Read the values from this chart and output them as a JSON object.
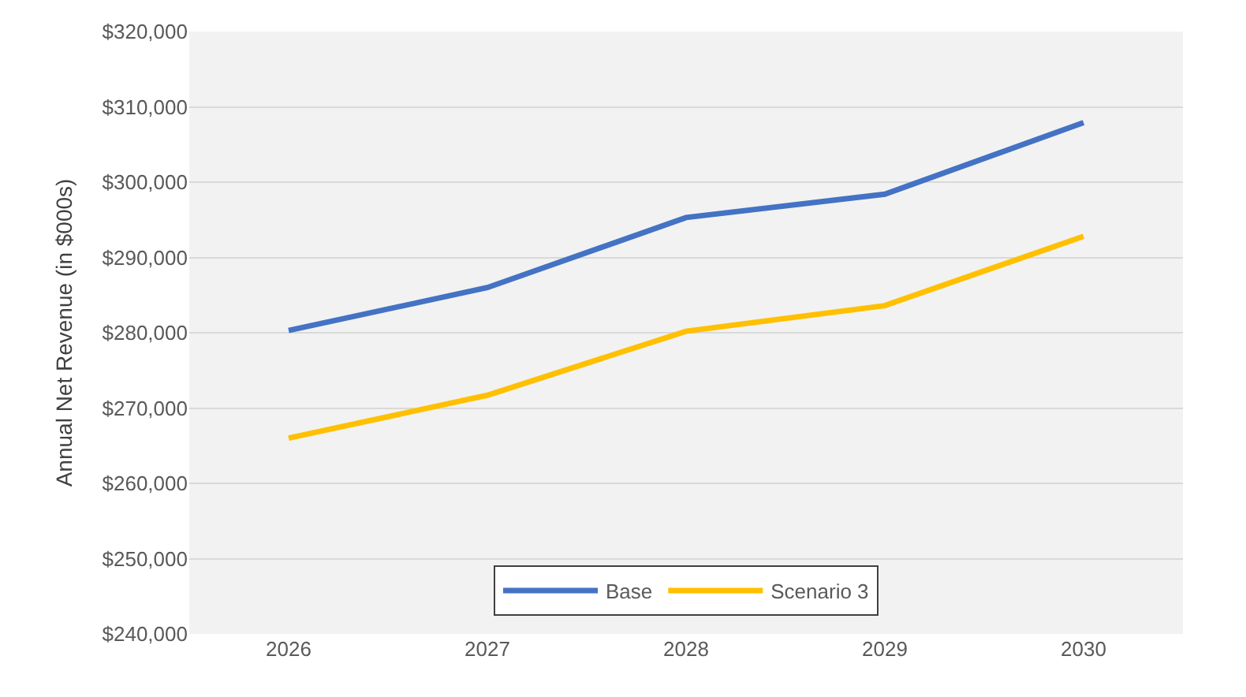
{
  "chart_data": {
    "type": "line",
    "ylabel": "Annual Net Revenue (in $000s)",
    "categories": [
      "2026",
      "2027",
      "2028",
      "2029",
      "2030"
    ],
    "series": [
      {
        "name": "Base",
        "color": "#4472c4",
        "values": [
          280300,
          286000,
          295300,
          298400,
          307900
        ]
      },
      {
        "name": "Scenario 3",
        "color": "#ffc000",
        "values": [
          266000,
          271700,
          280200,
          283600,
          292800
        ]
      }
    ],
    "ylim": [
      240000,
      320000
    ],
    "yticks": [
      {
        "value": 240000,
        "label": "$240,000"
      },
      {
        "value": 250000,
        "label": "$250,000"
      },
      {
        "value": 260000,
        "label": "$260,000"
      },
      {
        "value": 270000,
        "label": "$270,000"
      },
      {
        "value": 280000,
        "label": "$280,000"
      },
      {
        "value": 290000,
        "label": "$290,000"
      },
      {
        "value": 300000,
        "label": "$300,000"
      },
      {
        "value": 310000,
        "label": "$310,000"
      },
      {
        "value": 320000,
        "label": "$320,000"
      }
    ],
    "grid": "y",
    "legend": "bottom",
    "marker": "none",
    "line_style": "solid"
  }
}
